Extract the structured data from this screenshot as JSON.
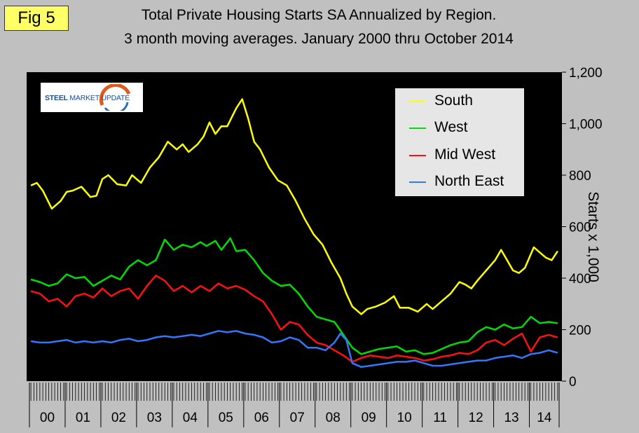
{
  "figure_label": "Fig 5",
  "title_line1": "Total Private Housing Starts SA Annualized by Region.",
  "title_line2": "3 month moving averages. January 2000 thru October 2014",
  "logo": {
    "text_steel": "STEEL",
    "text_rest": "MARKET UPDATE"
  },
  "colors": {
    "background": "#c0c0c0",
    "plot": "#000000",
    "south": "#ffff00",
    "west": "#00dd00",
    "midwest": "#ff1010",
    "northeast": "#3377ff"
  },
  "chart_data": {
    "type": "line",
    "title": "Total Private Housing Starts SA Annualized by Region. 3 month moving averages. January 2000 thru October 2014",
    "ylabel": "Starts x 1,000",
    "xlabel": "",
    "ylim": [
      0,
      1200
    ],
    "yticks": [
      0,
      200,
      400,
      600,
      800,
      1000,
      1200
    ],
    "ytick_labels": [
      "0",
      "200",
      "400",
      "600",
      "800",
      "1,000",
      "1,200"
    ],
    "x_start": "2000-01",
    "x_end": "2014-10",
    "year_labels": [
      "00",
      "01",
      "02",
      "03",
      "04",
      "05",
      "06",
      "07",
      "08",
      "09",
      "10",
      "11",
      "12",
      "13",
      "14"
    ],
    "grid": false,
    "legend_position": "top-right",
    "series": [
      {
        "name": "South",
        "color": "#ffff00",
        "points": [
          [
            "2000-01",
            760
          ],
          [
            "2000-03",
            770
          ],
          [
            "2000-05",
            740
          ],
          [
            "2000-08",
            670
          ],
          [
            "2000-11",
            700
          ],
          [
            "2001-01",
            735
          ],
          [
            "2001-03",
            740
          ],
          [
            "2001-06",
            755
          ],
          [
            "2001-09",
            715
          ],
          [
            "2001-11",
            720
          ],
          [
            "2002-01",
            785
          ],
          [
            "2002-03",
            800
          ],
          [
            "2002-06",
            765
          ],
          [
            "2002-09",
            760
          ],
          [
            "2002-11",
            800
          ],
          [
            "2003-02",
            770
          ],
          [
            "2003-05",
            830
          ],
          [
            "2003-08",
            870
          ],
          [
            "2003-11",
            930
          ],
          [
            "2004-02",
            900
          ],
          [
            "2004-04",
            920
          ],
          [
            "2004-06",
            890
          ],
          [
            "2004-09",
            920
          ],
          [
            "2004-11",
            950
          ],
          [
            "2005-01",
            1005
          ],
          [
            "2005-03",
            960
          ],
          [
            "2005-05",
            990
          ],
          [
            "2005-07",
            990
          ],
          [
            "2005-10",
            1060
          ],
          [
            "2005-12",
            1095
          ],
          [
            "2006-02",
            1020
          ],
          [
            "2006-04",
            930
          ],
          [
            "2006-06",
            900
          ],
          [
            "2006-09",
            830
          ],
          [
            "2006-12",
            780
          ],
          [
            "2007-03",
            760
          ],
          [
            "2007-06",
            700
          ],
          [
            "2007-09",
            630
          ],
          [
            "2007-12",
            570
          ],
          [
            "2008-03",
            530
          ],
          [
            "2008-06",
            460
          ],
          [
            "2008-09",
            400
          ],
          [
            "2008-11",
            340
          ],
          [
            "2009-01",
            290
          ],
          [
            "2009-04",
            260
          ],
          [
            "2009-06",
            280
          ],
          [
            "2009-09",
            290
          ],
          [
            "2009-12",
            305
          ],
          [
            "2010-03",
            330
          ],
          [
            "2010-05",
            285
          ],
          [
            "2010-08",
            285
          ],
          [
            "2010-11",
            270
          ],
          [
            "2011-02",
            300
          ],
          [
            "2011-04",
            280
          ],
          [
            "2011-07",
            310
          ],
          [
            "2011-10",
            340
          ],
          [
            "2012-01",
            385
          ],
          [
            "2012-03",
            375
          ],
          [
            "2012-05",
            360
          ],
          [
            "2012-07",
            390
          ],
          [
            "2012-10",
            430
          ],
          [
            "2013-01",
            470
          ],
          [
            "2013-03",
            510
          ],
          [
            "2013-05",
            470
          ],
          [
            "2013-07",
            430
          ],
          [
            "2013-09",
            420
          ],
          [
            "2013-11",
            440
          ],
          [
            "2014-02",
            520
          ],
          [
            "2014-04",
            500
          ],
          [
            "2014-06",
            480
          ],
          [
            "2014-08",
            470
          ],
          [
            "2014-10",
            505
          ]
        ]
      },
      {
        "name": "West",
        "color": "#00dd00",
        "points": [
          [
            "2000-01",
            395
          ],
          [
            "2000-04",
            385
          ],
          [
            "2000-07",
            370
          ],
          [
            "2000-10",
            380
          ],
          [
            "2001-01",
            415
          ],
          [
            "2001-04",
            400
          ],
          [
            "2001-07",
            405
          ],
          [
            "2001-10",
            370
          ],
          [
            "2002-01",
            390
          ],
          [
            "2002-04",
            410
          ],
          [
            "2002-07",
            395
          ],
          [
            "2002-10",
            445
          ],
          [
            "2003-01",
            470
          ],
          [
            "2003-04",
            450
          ],
          [
            "2003-07",
            470
          ],
          [
            "2003-10",
            550
          ],
          [
            "2004-01",
            510
          ],
          [
            "2004-04",
            530
          ],
          [
            "2004-07",
            520
          ],
          [
            "2004-10",
            540
          ],
          [
            "2004-12",
            525
          ],
          [
            "2005-03",
            545
          ],
          [
            "2005-05",
            510
          ],
          [
            "2005-08",
            555
          ],
          [
            "2005-10",
            505
          ],
          [
            "2006-01",
            510
          ],
          [
            "2006-04",
            470
          ],
          [
            "2006-07",
            420
          ],
          [
            "2006-10",
            390
          ],
          [
            "2007-01",
            370
          ],
          [
            "2007-04",
            375
          ],
          [
            "2007-07",
            340
          ],
          [
            "2007-10",
            290
          ],
          [
            "2008-01",
            250
          ],
          [
            "2008-04",
            240
          ],
          [
            "2008-07",
            230
          ],
          [
            "2008-10",
            180
          ],
          [
            "2009-01",
            130
          ],
          [
            "2009-04",
            105
          ],
          [
            "2009-07",
            115
          ],
          [
            "2009-10",
            125
          ],
          [
            "2010-01",
            130
          ],
          [
            "2010-04",
            135
          ],
          [
            "2010-07",
            115
          ],
          [
            "2010-10",
            120
          ],
          [
            "2011-01",
            105
          ],
          [
            "2011-04",
            110
          ],
          [
            "2011-07",
            125
          ],
          [
            "2011-10",
            140
          ],
          [
            "2012-01",
            150
          ],
          [
            "2012-04",
            155
          ],
          [
            "2012-07",
            190
          ],
          [
            "2012-10",
            210
          ],
          [
            "2013-01",
            200
          ],
          [
            "2013-04",
            220
          ],
          [
            "2013-07",
            205
          ],
          [
            "2013-10",
            210
          ],
          [
            "2014-01",
            250
          ],
          [
            "2014-04",
            225
          ],
          [
            "2014-07",
            230
          ],
          [
            "2014-10",
            225
          ]
        ]
      },
      {
        "name": "Mid West",
        "color": "#ff1010",
        "points": [
          [
            "2000-01",
            350
          ],
          [
            "2000-04",
            340
          ],
          [
            "2000-07",
            310
          ],
          [
            "2000-10",
            320
          ],
          [
            "2001-01",
            290
          ],
          [
            "2001-04",
            330
          ],
          [
            "2001-07",
            340
          ],
          [
            "2001-10",
            325
          ],
          [
            "2002-01",
            360
          ],
          [
            "2002-04",
            330
          ],
          [
            "2002-07",
            350
          ],
          [
            "2002-10",
            360
          ],
          [
            "2003-01",
            320
          ],
          [
            "2003-04",
            370
          ],
          [
            "2003-07",
            410
          ],
          [
            "2003-10",
            390
          ],
          [
            "2004-01",
            350
          ],
          [
            "2004-04",
            370
          ],
          [
            "2004-07",
            345
          ],
          [
            "2004-10",
            370
          ],
          [
            "2005-01",
            350
          ],
          [
            "2005-04",
            380
          ],
          [
            "2005-07",
            360
          ],
          [
            "2005-10",
            370
          ],
          [
            "2006-01",
            355
          ],
          [
            "2006-04",
            330
          ],
          [
            "2006-07",
            310
          ],
          [
            "2006-10",
            260
          ],
          [
            "2007-01",
            200
          ],
          [
            "2007-04",
            230
          ],
          [
            "2007-07",
            220
          ],
          [
            "2007-10",
            180
          ],
          [
            "2008-01",
            150
          ],
          [
            "2008-04",
            140
          ],
          [
            "2008-07",
            120
          ],
          [
            "2008-10",
            100
          ],
          [
            "2009-01",
            75
          ],
          [
            "2009-04",
            90
          ],
          [
            "2009-07",
            100
          ],
          [
            "2009-10",
            95
          ],
          [
            "2010-01",
            90
          ],
          [
            "2010-04",
            100
          ],
          [
            "2010-07",
            95
          ],
          [
            "2010-10",
            90
          ],
          [
            "2011-01",
            80
          ],
          [
            "2011-04",
            85
          ],
          [
            "2011-07",
            95
          ],
          [
            "2011-10",
            100
          ],
          [
            "2012-01",
            110
          ],
          [
            "2012-04",
            105
          ],
          [
            "2012-07",
            120
          ],
          [
            "2012-10",
            150
          ],
          [
            "2013-01",
            160
          ],
          [
            "2013-04",
            140
          ],
          [
            "2013-07",
            165
          ],
          [
            "2013-10",
            185
          ],
          [
            "2014-01",
            115
          ],
          [
            "2014-04",
            170
          ],
          [
            "2014-07",
            180
          ],
          [
            "2014-10",
            170
          ]
        ]
      },
      {
        "name": "North East",
        "color": "#3377ff",
        "points": [
          [
            "2000-01",
            155
          ],
          [
            "2000-04",
            150
          ],
          [
            "2000-07",
            150
          ],
          [
            "2000-10",
            155
          ],
          [
            "2001-01",
            160
          ],
          [
            "2001-04",
            150
          ],
          [
            "2001-07",
            155
          ],
          [
            "2001-10",
            150
          ],
          [
            "2002-01",
            155
          ],
          [
            "2002-04",
            150
          ],
          [
            "2002-07",
            160
          ],
          [
            "2002-10",
            165
          ],
          [
            "2003-01",
            155
          ],
          [
            "2003-04",
            160
          ],
          [
            "2003-07",
            170
          ],
          [
            "2003-10",
            175
          ],
          [
            "2004-01",
            170
          ],
          [
            "2004-04",
            175
          ],
          [
            "2004-07",
            180
          ],
          [
            "2004-10",
            175
          ],
          [
            "2005-01",
            185
          ],
          [
            "2005-04",
            195
          ],
          [
            "2005-07",
            190
          ],
          [
            "2005-10",
            195
          ],
          [
            "2006-01",
            185
          ],
          [
            "2006-04",
            180
          ],
          [
            "2006-07",
            170
          ],
          [
            "2006-10",
            150
          ],
          [
            "2007-01",
            155
          ],
          [
            "2007-04",
            170
          ],
          [
            "2007-07",
            160
          ],
          [
            "2007-10",
            130
          ],
          [
            "2008-01",
            130
          ],
          [
            "2008-04",
            120
          ],
          [
            "2008-07",
            150
          ],
          [
            "2008-09",
            185
          ],
          [
            "2008-11",
            160
          ],
          [
            "2009-01",
            70
          ],
          [
            "2009-04",
            55
          ],
          [
            "2009-07",
            60
          ],
          [
            "2009-10",
            65
          ],
          [
            "2010-01",
            70
          ],
          [
            "2010-04",
            75
          ],
          [
            "2010-07",
            75
          ],
          [
            "2010-10",
            80
          ],
          [
            "2011-01",
            70
          ],
          [
            "2011-04",
            60
          ],
          [
            "2011-07",
            60
          ],
          [
            "2011-10",
            65
          ],
          [
            "2012-01",
            70
          ],
          [
            "2012-04",
            75
          ],
          [
            "2012-07",
            80
          ],
          [
            "2012-10",
            80
          ],
          [
            "2013-01",
            90
          ],
          [
            "2013-04",
            95
          ],
          [
            "2013-07",
            100
          ],
          [
            "2013-10",
            90
          ],
          [
            "2014-01",
            105
          ],
          [
            "2014-04",
            110
          ],
          [
            "2014-07",
            120
          ],
          [
            "2014-10",
            110
          ]
        ]
      }
    ]
  }
}
